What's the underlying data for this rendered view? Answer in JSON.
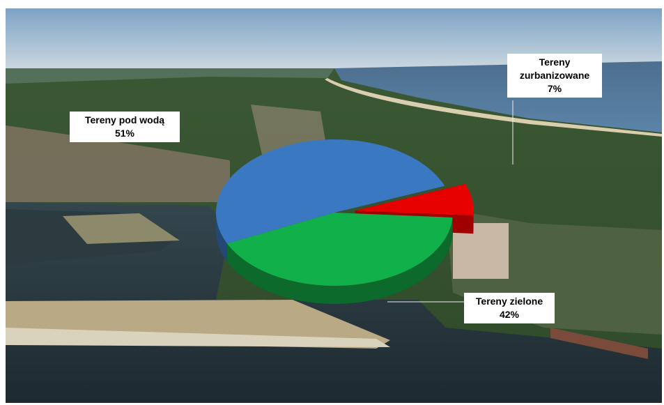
{
  "chart_data": {
    "type": "pie3d",
    "categories": [
      "Tereny pod wodą",
      "Tereny zurbanizowane",
      "Tereny zielone"
    ],
    "values": [
      51,
      7,
      42
    ],
    "value_labels": [
      "51%",
      "7%",
      "42%"
    ],
    "colors": [
      "#3b78c2",
      "#e60000",
      "#12b04a"
    ],
    "exploded": [
      false,
      true,
      false
    ]
  }
}
